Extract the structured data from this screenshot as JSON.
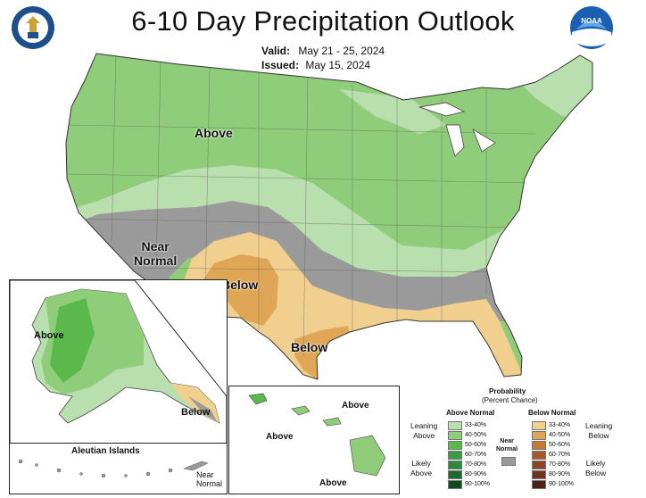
{
  "title": "6-10 Day Precipitation Outlook",
  "valid_label": "Valid:",
  "valid_value": "May 21 - 25, 2024",
  "issued_label": "Issued:",
  "issued_value": "May 15, 2024",
  "logos": {
    "left": "Department of Commerce seal",
    "right": "NOAA"
  },
  "map_labels": {
    "above_main": "Above",
    "near_normal": "Near\nNormal",
    "below_southwest": "Below",
    "below_gulf": "Below",
    "alaska_above": "Above",
    "alaska_below": "Below",
    "aleutian": "Aleutian Islands",
    "aleutian_near_normal": "Near\nNormal",
    "hawaii_above_1": "Above",
    "hawaii_above_2": "Above",
    "hawaii_above_3": "Above"
  },
  "legend": {
    "title": "Probability",
    "subtitle": "(Percent Chance)",
    "above_header": "Above Normal",
    "below_header": "Below Normal",
    "near_label": "Near\nNormal",
    "leaning_above": "Leaning\nAbove",
    "likely_above": "Likely\nAbove",
    "leaning_below": "Leaning\nBelow",
    "likely_below": "Likely\nBelow",
    "above_bins": [
      {
        "range": "33-40%",
        "color": "#b9dfae"
      },
      {
        "range": "40-50%",
        "color": "#8fcd7a"
      },
      {
        "range": "50-60%",
        "color": "#5bb94c"
      },
      {
        "range": "60-70%",
        "color": "#3f9a45"
      },
      {
        "range": "70-80%",
        "color": "#2c8a3a"
      },
      {
        "range": "80-90%",
        "color": "#1d6a2e"
      },
      {
        "range": "90-100%",
        "color": "#0e4a1e"
      }
    ],
    "below_bins": [
      {
        "range": "33-40%",
        "color": "#f1d08f"
      },
      {
        "range": "40-50%",
        "color": "#dfa755"
      },
      {
        "range": "50-60%",
        "color": "#c27a35"
      },
      {
        "range": "60-70%",
        "color": "#a9572b"
      },
      {
        "range": "70-80%",
        "color": "#8e4326"
      },
      {
        "range": "80-90%",
        "color": "#713220"
      },
      {
        "range": "90-100%",
        "color": "#4f2115"
      }
    ],
    "near_color": "#9a9a9a"
  }
}
